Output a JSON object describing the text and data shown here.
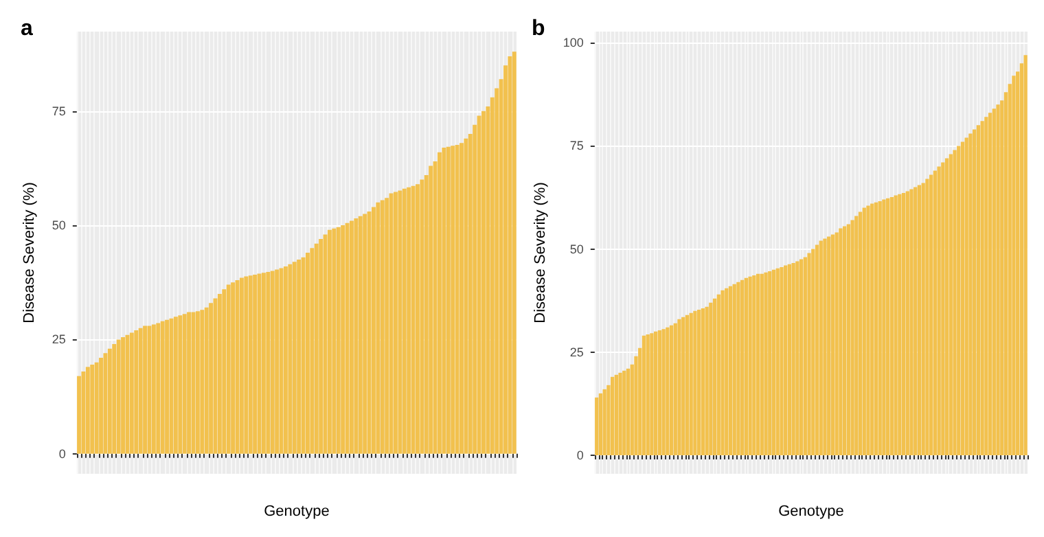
{
  "chart_data": [
    {
      "type": "bar",
      "title": "a",
      "xlabel": "Genotype",
      "ylabel": "Disease Severity (%)",
      "color": "#f2c14e",
      "ylim": [
        -4.4,
        92.4
      ],
      "yticks": [
        0,
        25,
        50,
        75
      ],
      "grid": true,
      "categories": [
        null,
        null,
        null,
        null,
        null,
        null,
        null,
        null,
        null,
        null,
        null,
        null,
        null,
        null,
        null,
        null,
        null,
        null,
        null,
        null,
        null,
        null,
        null,
        null,
        null,
        null,
        null,
        null,
        null,
        null,
        null,
        null,
        null,
        null,
        null,
        null,
        null,
        null,
        null,
        null,
        null,
        null,
        null,
        null,
        null,
        null,
        null,
        null,
        null,
        null,
        null,
        null,
        null,
        null,
        null,
        null,
        null,
        null,
        null,
        null,
        null,
        null,
        null,
        null,
        null,
        null,
        null,
        null,
        null,
        null,
        null,
        null,
        null,
        null,
        null,
        null,
        null,
        null,
        null,
        null,
        null,
        null,
        null,
        null,
        null,
        null,
        null,
        null,
        null,
        null,
        null,
        null,
        null,
        null,
        null,
        null,
        null,
        null,
        null,
        null
      ],
      "values": [
        17,
        18,
        19,
        19.5,
        20,
        21,
        22,
        23,
        24,
        25,
        25.5,
        26,
        26.5,
        27,
        27.5,
        28,
        28,
        28.3,
        28.6,
        29,
        29.3,
        29.6,
        30,
        30.3,
        30.6,
        31,
        31,
        31.2,
        31.5,
        32,
        33,
        34,
        35,
        36,
        37,
        37.5,
        38,
        38.5,
        38.8,
        39,
        39.2,
        39.4,
        39.6,
        39.8,
        40,
        40.3,
        40.6,
        41,
        41.5,
        42,
        42.5,
        43,
        44,
        45,
        46,
        47,
        48,
        49,
        49.3,
        49.6,
        50,
        50.5,
        51,
        51.5,
        52,
        52.5,
        53,
        54,
        55,
        55.5,
        56,
        57,
        57.3,
        57.6,
        58,
        58.3,
        58.6,
        59,
        60,
        61,
        63,
        64,
        66,
        67,
        67.2,
        67.4,
        67.6,
        68,
        69,
        70,
        72,
        74,
        75,
        76,
        78,
        80,
        82,
        85,
        87,
        88
      ]
    },
    {
      "type": "bar",
      "title": "b",
      "xlabel": "Genotype",
      "ylabel": "Disease Severity (%)",
      "color": "#f2c14e",
      "ylim": [
        -4.5,
        102.7
      ],
      "yticks": [
        0,
        25,
        50,
        75,
        100
      ],
      "grid": true,
      "categories": [
        null,
        null,
        null,
        null,
        null,
        null,
        null,
        null,
        null,
        null,
        null,
        null,
        null,
        null,
        null,
        null,
        null,
        null,
        null,
        null,
        null,
        null,
        null,
        null,
        null,
        null,
        null,
        null,
        null,
        null,
        null,
        null,
        null,
        null,
        null,
        null,
        null,
        null,
        null,
        null,
        null,
        null,
        null,
        null,
        null,
        null,
        null,
        null,
        null,
        null,
        null,
        null,
        null,
        null,
        null,
        null,
        null,
        null,
        null,
        null,
        null,
        null,
        null,
        null,
        null,
        null,
        null,
        null,
        null,
        null,
        null,
        null,
        null,
        null,
        null,
        null,
        null,
        null,
        null,
        null,
        null,
        null,
        null,
        null,
        null,
        null,
        null,
        null,
        null,
        null,
        null,
        null,
        null,
        null,
        null,
        null,
        null,
        null,
        null,
        null,
        null,
        null,
        null,
        null,
        null,
        null,
        null,
        null,
        null,
        null
      ],
      "values": [
        14,
        15,
        16,
        17,
        19,
        19.5,
        20,
        20.5,
        21,
        22,
        24,
        26,
        29,
        29.3,
        29.6,
        30,
        30.3,
        30.6,
        31,
        31.5,
        32,
        33,
        33.5,
        34,
        34.5,
        35,
        35.3,
        35.6,
        36,
        37,
        38,
        39,
        40,
        40.5,
        41,
        41.5,
        42,
        42.5,
        43,
        43.3,
        43.6,
        44,
        44,
        44.3,
        44.6,
        45,
        45.3,
        45.6,
        46,
        46.3,
        46.6,
        47,
        47.5,
        48,
        49,
        50,
        51,
        52,
        52.5,
        53,
        53.5,
        54,
        55,
        55.5,
        56,
        57,
        58,
        59,
        60,
        60.5,
        61,
        61.3,
        61.6,
        62,
        62.3,
        62.6,
        63,
        63.3,
        63.6,
        64,
        64.5,
        65,
        65.5,
        66,
        67,
        68,
        69,
        70,
        71,
        72,
        73,
        74,
        75,
        76,
        77,
        78,
        79,
        80,
        81,
        82,
        83,
        84,
        85,
        86,
        88,
        90,
        92,
        93,
        95,
        97
      ]
    }
  ]
}
